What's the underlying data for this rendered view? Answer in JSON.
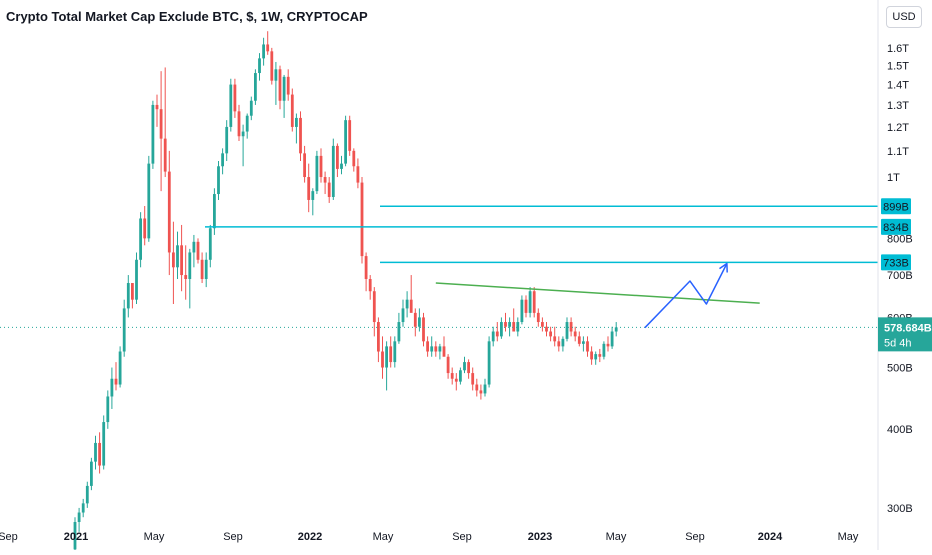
{
  "chart_data": {
    "type": "candlestick",
    "title": "Crypto Total Market Cap Exclude BTC, $, 1W, CRYPTOCAP",
    "currency": "USD",
    "y_scale": "log",
    "ylim": [
      285,
      1720
    ],
    "x_tick_labels": [
      "Sep",
      "2021",
      "May",
      "Sep",
      "2022",
      "May",
      "Sep",
      "2023",
      "May",
      "Sep",
      "2024",
      "May"
    ],
    "y_tick_labels": [
      "300B",
      "400B",
      "500B",
      "600B",
      "700B",
      "800B",
      "1T",
      "1.1T",
      "1.2T",
      "1.3T",
      "1.4T",
      "1.5T",
      "1.6T"
    ],
    "y_tick_values": [
      300,
      400,
      500,
      600,
      700,
      800,
      1000,
      1100,
      1200,
      1300,
      1400,
      1500,
      1600
    ],
    "candles": [
      [
        258,
        290,
        255,
        285
      ],
      [
        285,
        300,
        275,
        295
      ],
      [
        295,
        310,
        290,
        305
      ],
      [
        305,
        330,
        300,
        325
      ],
      [
        325,
        360,
        320,
        355
      ],
      [
        355,
        390,
        345,
        380
      ],
      [
        380,
        395,
        340,
        350
      ],
      [
        350,
        420,
        345,
        410
      ],
      [
        410,
        460,
        400,
        450
      ],
      [
        450,
        500,
        430,
        480
      ],
      [
        480,
        510,
        460,
        470
      ],
      [
        470,
        540,
        465,
        530
      ],
      [
        530,
        640,
        520,
        620
      ],
      [
        620,
        700,
        600,
        680
      ],
      [
        680,
        680,
        620,
        640
      ],
      [
        640,
        760,
        630,
        740
      ],
      [
        740,
        880,
        720,
        860
      ],
      [
        860,
        900,
        780,
        800
      ],
      [
        800,
        1080,
        790,
        1050
      ],
      [
        1050,
        1320,
        1030,
        1300
      ],
      [
        1300,
        1350,
        1200,
        1280
      ],
      [
        1280,
        1470,
        950,
        1150
      ],
      [
        1150,
        1490,
        1000,
        1020
      ],
      [
        1020,
        1100,
        700,
        760
      ],
      [
        760,
        850,
        630,
        720
      ],
      [
        720,
        820,
        690,
        780
      ],
      [
        780,
        840,
        660,
        700
      ],
      [
        700,
        780,
        640,
        690
      ],
      [
        690,
        770,
        620,
        760
      ],
      [
        760,
        810,
        720,
        790
      ],
      [
        790,
        800,
        730,
        740
      ],
      [
        740,
        760,
        680,
        690
      ],
      [
        690,
        760,
        670,
        740
      ],
      [
        740,
        840,
        720,
        830
      ],
      [
        830,
        960,
        810,
        940
      ],
      [
        940,
        1060,
        920,
        1040
      ],
      [
        1040,
        1110,
        1010,
        1090
      ],
      [
        1090,
        1230,
        1060,
        1200
      ],
      [
        1200,
        1430,
        1180,
        1400
      ],
      [
        1400,
        1430,
        1240,
        1270
      ],
      [
        1270,
        1300,
        1140,
        1160
      ],
      [
        1160,
        1210,
        1040,
        1180
      ],
      [
        1180,
        1260,
        1150,
        1250
      ],
      [
        1250,
        1340,
        1230,
        1320
      ],
      [
        1320,
        1480,
        1300,
        1460
      ],
      [
        1460,
        1570,
        1420,
        1540
      ],
      [
        1540,
        1660,
        1500,
        1620
      ],
      [
        1620,
        1700,
        1560,
        1580
      ],
      [
        1580,
        1600,
        1400,
        1420
      ],
      [
        1420,
        1520,
        1300,
        1480
      ],
      [
        1480,
        1500,
        1280,
        1320
      ],
      [
        1320,
        1450,
        1240,
        1440
      ],
      [
        1440,
        1480,
        1320,
        1350
      ],
      [
        1350,
        1380,
        1180,
        1200
      ],
      [
        1200,
        1260,
        1130,
        1240
      ],
      [
        1240,
        1270,
        1060,
        1090
      ],
      [
        1090,
        1120,
        980,
        1000
      ],
      [
        1000,
        1050,
        880,
        920
      ],
      [
        920,
        960,
        870,
        950
      ],
      [
        950,
        1100,
        940,
        1080
      ],
      [
        1080,
        1110,
        980,
        1000
      ],
      [
        1000,
        1020,
        940,
        980
      ],
      [
        980,
        1000,
        910,
        930
      ],
      [
        930,
        1150,
        920,
        1120
      ],
      [
        1120,
        1130,
        1000,
        1030
      ],
      [
        1030,
        1080,
        1010,
        1050
      ],
      [
        1050,
        1250,
        1040,
        1230
      ],
      [
        1230,
        1250,
        1080,
        1100
      ],
      [
        1100,
        1110,
        1020,
        1040
      ],
      [
        1040,
        1070,
        960,
        980
      ],
      [
        980,
        1000,
        730,
        750
      ],
      [
        750,
        760,
        660,
        690
      ],
      [
        690,
        700,
        640,
        660
      ],
      [
        660,
        670,
        560,
        590
      ],
      [
        590,
        600,
        510,
        530
      ],
      [
        530,
        560,
        480,
        500
      ],
      [
        500,
        550,
        460,
        540
      ],
      [
        540,
        560,
        500,
        510
      ],
      [
        510,
        560,
        500,
        550
      ],
      [
        550,
        610,
        545,
        590
      ],
      [
        590,
        640,
        580,
        620
      ],
      [
        620,
        660,
        600,
        640
      ],
      [
        640,
        700,
        620,
        610
      ],
      [
        610,
        620,
        560,
        580
      ],
      [
        580,
        620,
        570,
        600
      ],
      [
        600,
        610,
        540,
        550
      ],
      [
        550,
        560,
        520,
        530
      ],
      [
        530,
        560,
        520,
        540
      ],
      [
        540,
        550,
        520,
        530
      ],
      [
        530,
        545,
        515,
        540
      ],
      [
        540,
        560,
        530,
        520
      ],
      [
        520,
        525,
        480,
        490
      ],
      [
        490,
        500,
        470,
        480
      ],
      [
        480,
        490,
        460,
        475
      ],
      [
        475,
        500,
        470,
        495
      ],
      [
        495,
        520,
        490,
        510
      ],
      [
        510,
        515,
        480,
        490
      ],
      [
        490,
        500,
        460,
        470
      ],
      [
        470,
        480,
        450,
        460
      ],
      [
        460,
        470,
        445,
        455
      ],
      [
        455,
        480,
        450,
        470
      ],
      [
        470,
        560,
        465,
        550
      ],
      [
        550,
        580,
        540,
        570
      ],
      [
        570,
        590,
        550,
        560
      ],
      [
        560,
        600,
        555,
        590
      ],
      [
        590,
        610,
        570,
        580
      ],
      [
        580,
        600,
        560,
        590
      ],
      [
        590,
        620,
        580,
        570
      ],
      [
        570,
        600,
        560,
        590
      ],
      [
        590,
        650,
        585,
        640
      ],
      [
        640,
        650,
        600,
        610
      ],
      [
        610,
        670,
        600,
        660
      ],
      [
        660,
        670,
        600,
        610
      ],
      [
        610,
        620,
        580,
        590
      ],
      [
        590,
        600,
        570,
        580
      ],
      [
        580,
        590,
        560,
        570
      ],
      [
        570,
        580,
        550,
        560
      ],
      [
        560,
        580,
        540,
        550
      ],
      [
        550,
        560,
        530,
        540
      ],
      [
        540,
        560,
        530,
        555
      ],
      [
        555,
        600,
        550,
        590
      ],
      [
        590,
        600,
        560,
        570
      ],
      [
        570,
        580,
        550,
        560
      ],
      [
        560,
        570,
        540,
        545
      ],
      [
        545,
        560,
        530,
        550
      ],
      [
        550,
        560,
        520,
        530
      ],
      [
        530,
        540,
        505,
        515
      ],
      [
        515,
        530,
        505,
        525
      ],
      [
        525,
        535,
        510,
        520
      ],
      [
        520,
        550,
        515,
        545
      ],
      [
        545,
        560,
        530,
        540
      ],
      [
        540,
        580,
        535,
        570
      ],
      [
        570,
        590,
        560,
        578.684
      ]
    ],
    "horizontal_levels": [
      {
        "label": "899B",
        "value": 899
      },
      {
        "label": "834B",
        "value": 834
      },
      {
        "label": "733B",
        "value": 733
      }
    ],
    "current_price": {
      "label": "578.684B",
      "value": 578.684,
      "countdown": "5d 4h"
    },
    "trendline": {
      "from": {
        "week": 88,
        "value": 680
      },
      "to": {
        "week": 167,
        "value": 632
      }
    },
    "projection_arrow": [
      {
        "week": 139,
        "value": 578
      },
      {
        "week": 150,
        "value": 685
      },
      {
        "week": 154,
        "value": 630
      },
      {
        "week": 159,
        "value": 730
      },
      {
        "week": 160,
        "value": 690
      }
    ],
    "colors": {
      "up": "#26a69a",
      "down": "#ef5350",
      "level_line": "#00bcd4",
      "level_label_bg": "#00bcd4",
      "trendline": "#4caf50",
      "arrow": "#2962ff",
      "current_bg": "#26a69a",
      "axis_text": "#131722"
    }
  }
}
